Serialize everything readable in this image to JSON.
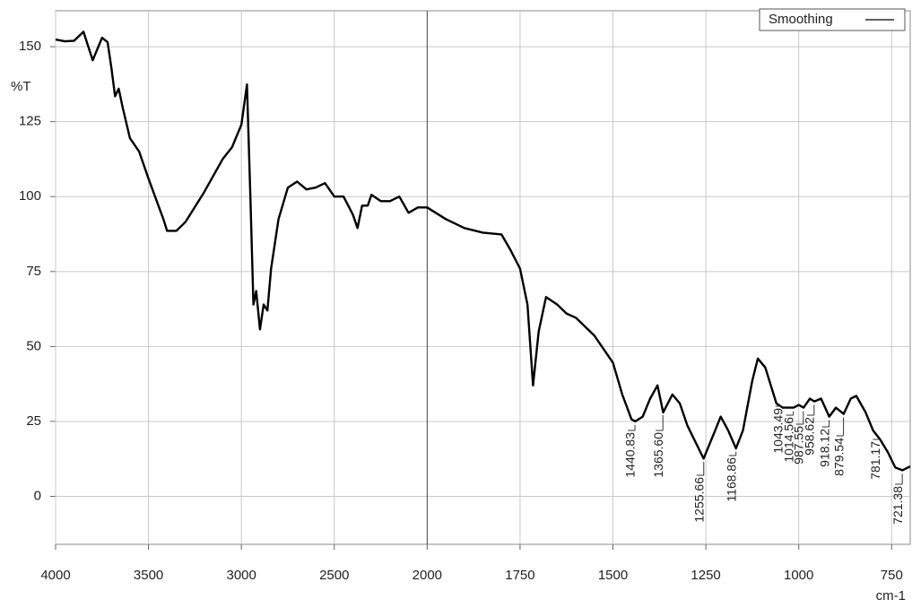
{
  "chart_data": {
    "type": "line",
    "ylabel": "%T",
    "xlabel": "cm-1",
    "x": [
      4000,
      3950,
      3900,
      3850,
      3800,
      3750,
      3720,
      3700,
      3680,
      3660,
      3640,
      3600,
      3550,
      3500,
      3450,
      3420,
      3400,
      3350,
      3300,
      3200,
      3100,
      3050,
      3000,
      2970,
      2950,
      2935,
      2920,
      2900,
      2880,
      2860,
      2840,
      2800,
      2750,
      2700,
      2650,
      2600,
      2550,
      2500,
      2450,
      2400,
      2375,
      2350,
      2320,
      2300,
      2250,
      2200,
      2150,
      2100,
      2050,
      2000,
      1950,
      1900,
      1850,
      1800,
      1775,
      1750,
      1730,
      1715,
      1700,
      1680,
      1650,
      1625,
      1600,
      1550,
      1500,
      1475,
      1450,
      1440,
      1420,
      1400,
      1380,
      1365,
      1340,
      1320,
      1300,
      1256,
      1225,
      1210,
      1190,
      1169,
      1150,
      1125,
      1110,
      1090,
      1060,
      1043,
      1014,
      1000,
      987,
      970,
      958,
      940,
      918,
      900,
      879,
      860,
      845,
      820,
      800,
      781,
      760,
      740,
      721,
      700
    ],
    "series": [
      {
        "name": "Smoothing",
        "color": "#000000",
        "values": [
          152.4,
          151.8,
          152,
          155,
          145.5,
          153,
          151.5,
          143,
          133.5,
          136,
          130,
          119.5,
          115,
          106,
          97.6,
          92.5,
          88.6,
          88.6,
          91.6,
          101.5,
          112.6,
          116.5,
          124,
          137.4,
          97,
          64,
          68.5,
          55.7,
          64,
          62,
          76,
          92.5,
          103,
          105,
          102.4,
          103,
          104.5,
          100,
          100,
          94,
          89.5,
          97,
          97,
          100.6,
          98.5,
          98.5,
          100,
          94.6,
          96.4,
          96.4,
          92.5,
          89.5,
          88,
          87.4,
          82,
          76,
          64,
          37,
          55,
          66.5,
          64,
          61,
          59.6,
          53.6,
          44.6,
          34,
          25.7,
          25,
          26.6,
          32.6,
          37,
          28,
          34,
          31,
          23.7,
          12.6,
          22,
          26.6,
          22,
          16,
          22,
          38.6,
          46,
          43,
          31,
          29.6,
          29.6,
          30.5,
          29.6,
          32.6,
          31.7,
          32.6,
          26.6,
          29.6,
          27.5,
          32.6,
          33.5,
          28,
          22,
          19,
          14.7,
          9.6,
          8.7,
          10
        ]
      }
    ],
    "xlim": [
      4000,
      700
    ],
    "xticks": [
      4000,
      3500,
      3000,
      2500,
      2000,
      1750,
      1500,
      1250,
      1000,
      750
    ],
    "ylim": [
      -16,
      162
    ],
    "yticks": [
      0,
      25,
      50,
      75,
      100,
      125,
      150
    ],
    "grid": true,
    "legend": "upper right",
    "peaks": [
      {
        "value": 1440.83,
        "label": "1440.83"
      },
      {
        "value": 1365.6,
        "label": "1365.60"
      },
      {
        "value": 1255.66,
        "label": "1255.66"
      },
      {
        "value": 1168.86,
        "label": "1168.86"
      },
      {
        "value": 1043.49,
        "label": "1043.49"
      },
      {
        "value": 1014.56,
        "label": "1014.56"
      },
      {
        "value": 987.55,
        "label": "987.55"
      },
      {
        "value": 958.62,
        "label": "958.62"
      },
      {
        "value": 918.12,
        "label": "918.12"
      },
      {
        "value": 879.54,
        "label": "879.54"
      },
      {
        "value": 781.17,
        "label": "781.17"
      },
      {
        "value": 721.38,
        "label": "721.38"
      }
    ]
  }
}
